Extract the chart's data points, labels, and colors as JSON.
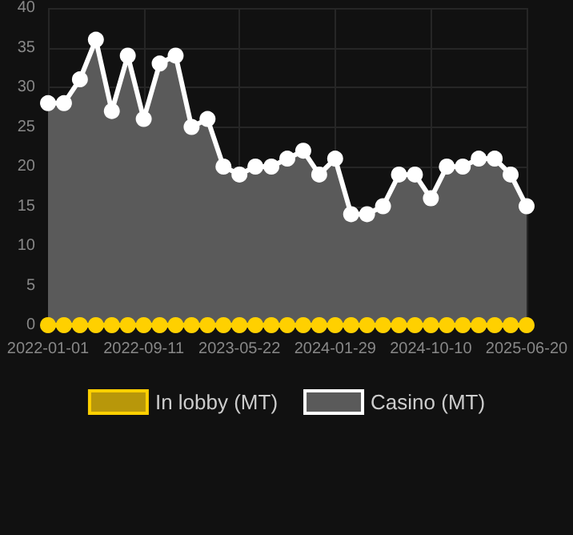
{
  "chart_data": {
    "type": "line",
    "categories": [
      "2022-01-01",
      null,
      null,
      null,
      null,
      null,
      "2022-09-11",
      null,
      null,
      null,
      null,
      null,
      "2023-05-22",
      null,
      null,
      null,
      null,
      null,
      "2024-01-29",
      null,
      null,
      null,
      null,
      null,
      "2024-10-10",
      null,
      null,
      null,
      null,
      null,
      "2025-06-20"
    ],
    "series": [
      {
        "name": "In lobby (MT)",
        "type": "line",
        "color": "#ffd000",
        "values": [
          0,
          0,
          0,
          0,
          0,
          0,
          0,
          0,
          0,
          0,
          0,
          0,
          0,
          0,
          0,
          0,
          0,
          0,
          0,
          0,
          0,
          0,
          0,
          0,
          0,
          0,
          0,
          0,
          0,
          0,
          0
        ]
      },
      {
        "name": "Casino (MT)",
        "type": "area",
        "color": "#ffffff",
        "values": [
          28,
          28,
          31,
          36,
          27,
          34,
          26,
          33,
          34,
          25,
          26,
          20,
          19,
          20,
          20,
          21,
          22,
          19,
          21,
          14,
          14,
          15,
          19,
          19,
          16,
          20,
          20,
          21,
          21,
          19,
          15
        ]
      }
    ],
    "ylim": [
      0,
      40
    ],
    "yticks": [
      0,
      5,
      10,
      15,
      20,
      25,
      30,
      35,
      40
    ],
    "grid": true,
    "legend": "bottom",
    "marker": "circle",
    "line_style": "solid"
  }
}
